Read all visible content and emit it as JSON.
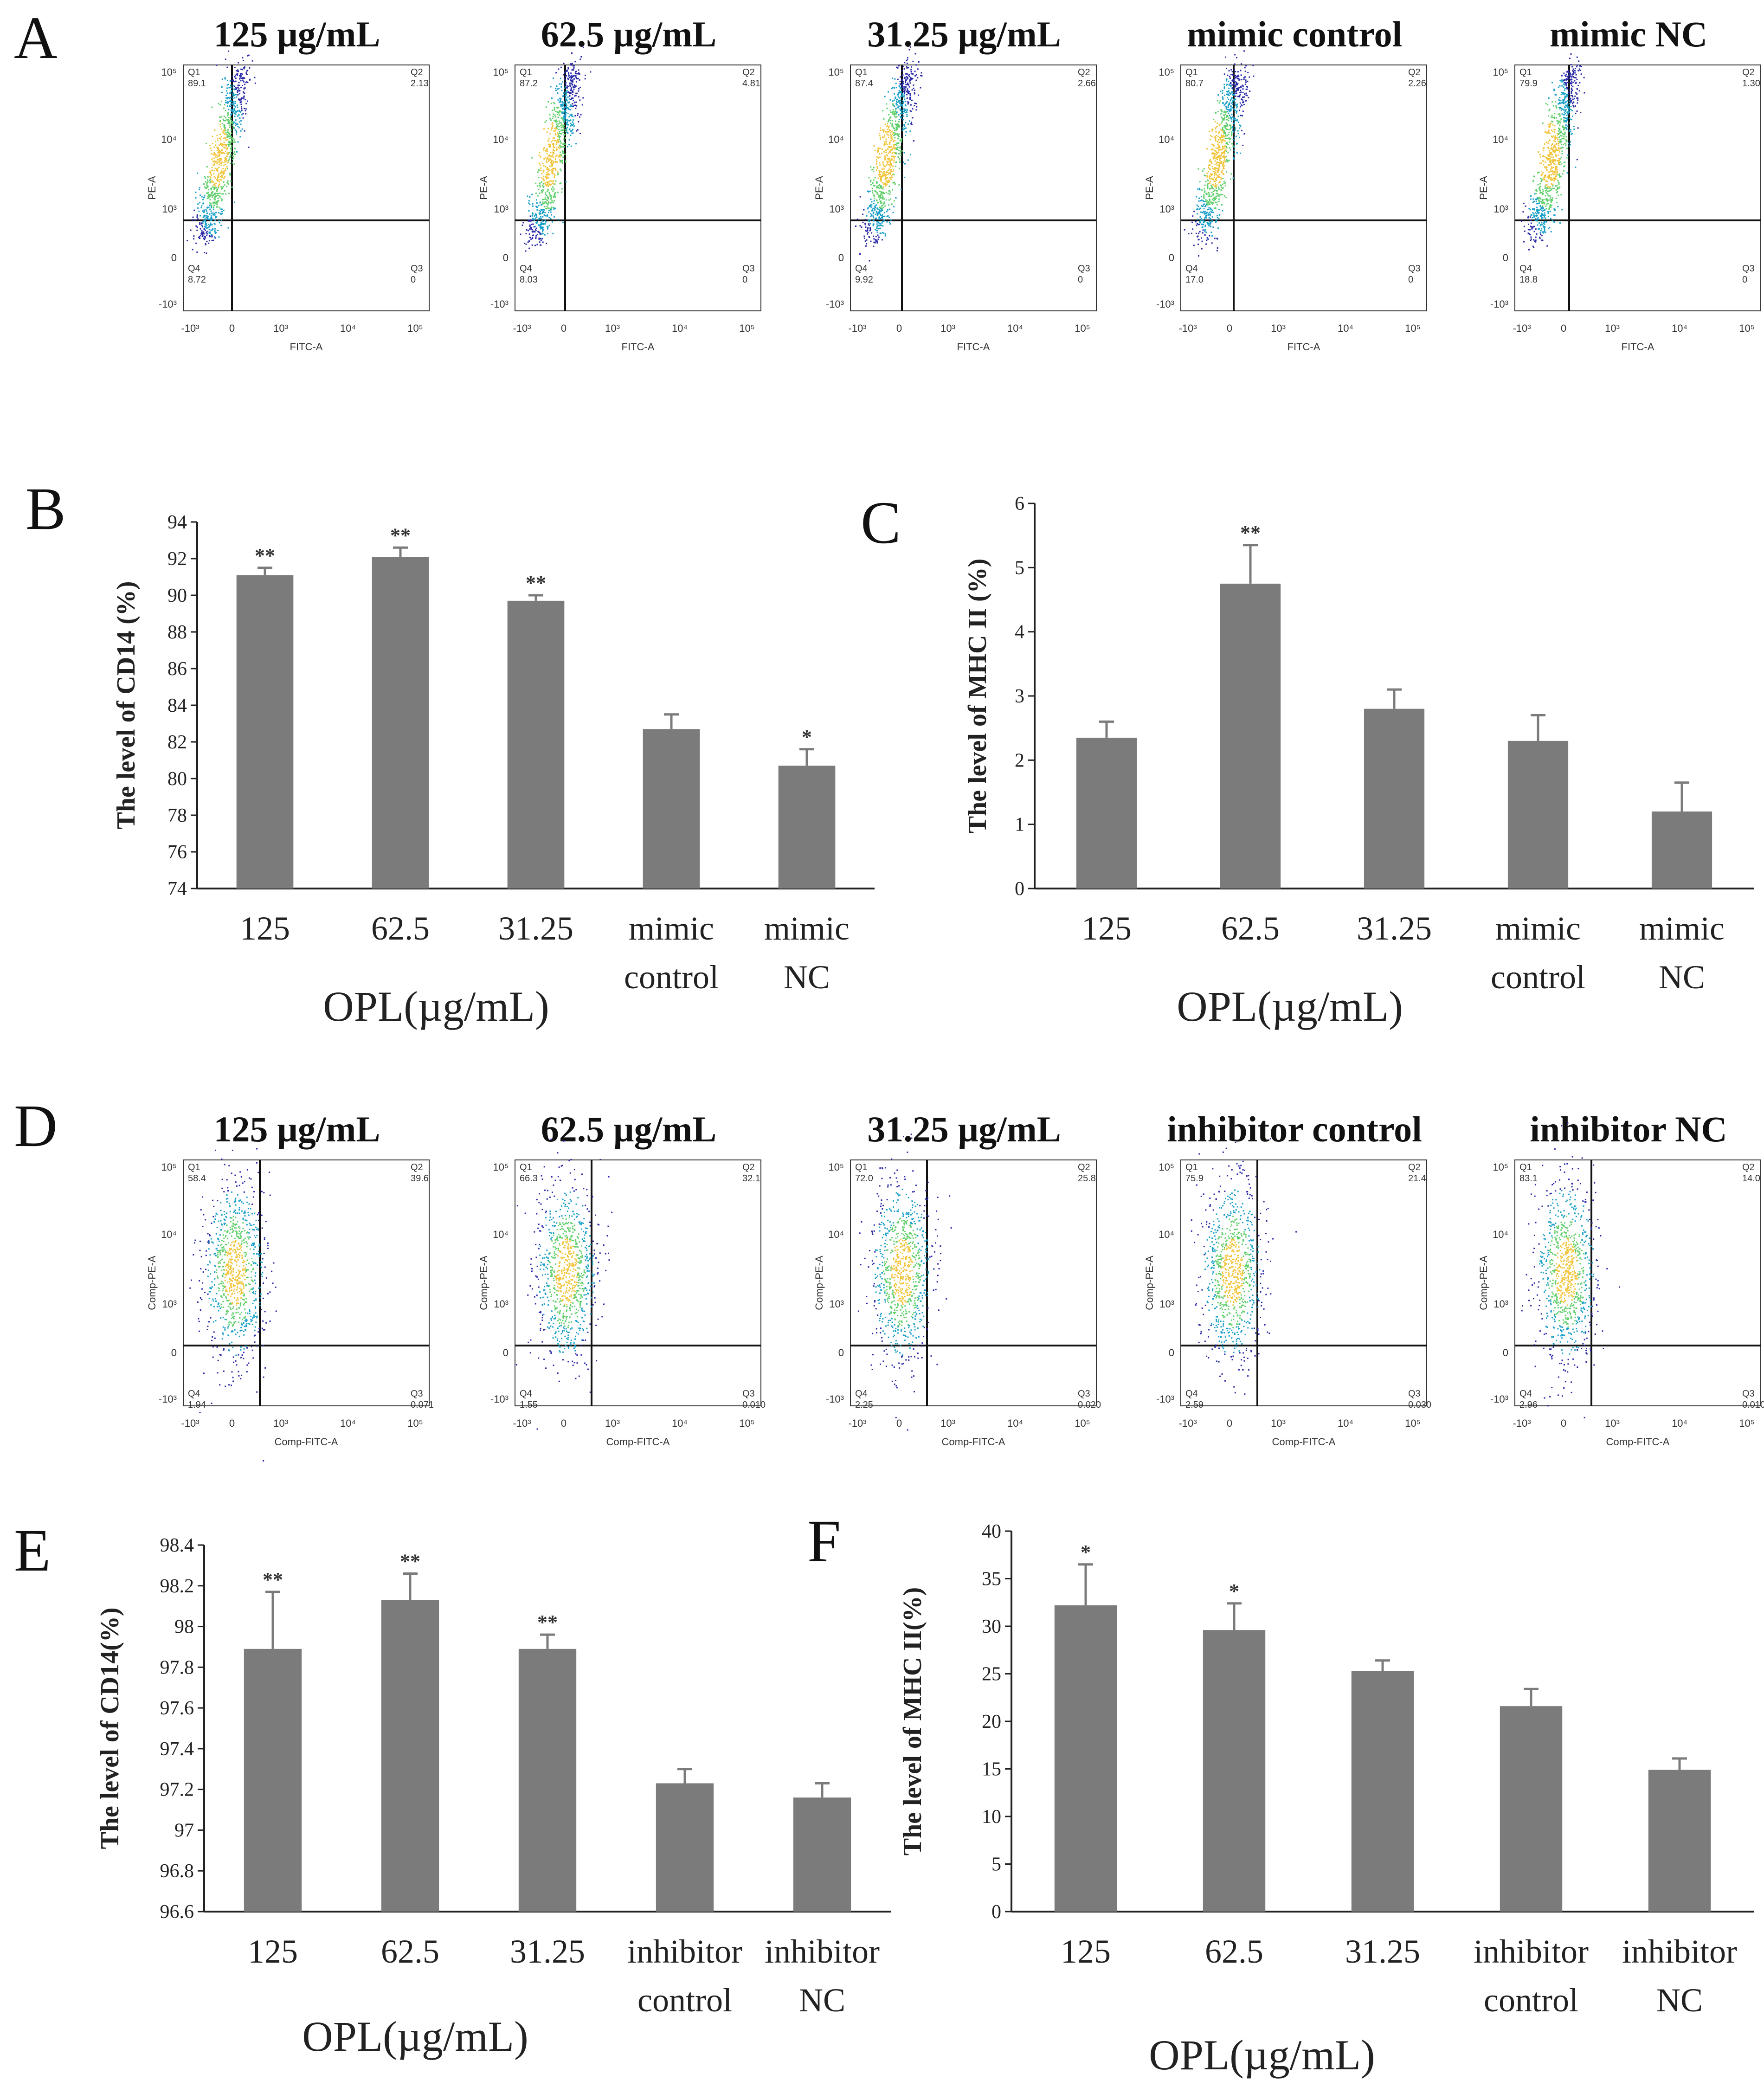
{
  "colors": {
    "bar": "#7b7b7b",
    "axis": "#222222",
    "flow_line": "#111111"
  },
  "panels": {
    "A": {
      "letter": "A",
      "plots": [
        {
          "title": "125 µg/mL",
          "q1": "89.1",
          "q2": "2.13",
          "q3": "0",
          "q4": "8.72"
        },
        {
          "title": "62.5 µg/mL",
          "q1": "87.2",
          "q2": "4.81",
          "q3": "0",
          "q4": "8.03"
        },
        {
          "title": "31.25 µg/mL",
          "q1": "87.4",
          "q2": "2.66",
          "q3": "0",
          "q4": "9.92"
        },
        {
          "title": "mimic control",
          "q1": "80.7",
          "q2": "2.26",
          "q3": "0",
          "q4": "17.0"
        },
        {
          "title": "mimic NC",
          "q1": "79.9",
          "q2": "1.30",
          "q3": "0",
          "q4": "18.8"
        }
      ],
      "y_axis_label": "PE-A",
      "x_axis_label": "FITC-A"
    },
    "D": {
      "letter": "D",
      "plots": [
        {
          "title": "125 µg/mL",
          "q1": "58.4",
          "q2": "39.6",
          "q3": "0.071",
          "q4": "1.94"
        },
        {
          "title": "62.5 µg/mL",
          "q1": "66.3",
          "q2": "32.1",
          "q3": "0.010",
          "q4": "1.55"
        },
        {
          "title": "31.25 µg/mL",
          "q1": "72.0",
          "q2": "25.8",
          "q3": "0.020",
          "q4": "2.25"
        },
        {
          "title": "inhibitor control",
          "q1": "75.9",
          "q2": "21.4",
          "q3": "0.030",
          "q4": "2.59"
        },
        {
          "title": "inhibitor NC",
          "q1": "83.1",
          "q2": "14.0",
          "q3": "0.010",
          "q4": "2.96"
        }
      ],
      "y_axis_label": "Comp-PE-A",
      "x_axis_label": "Comp-FITC-A"
    },
    "flow_common": {
      "q_labels": [
        "Q1",
        "Q2",
        "Q3",
        "Q4"
      ],
      "tick_labels_y": [
        "10⁵",
        "10⁴",
        "10³",
        "0",
        "-10³"
      ],
      "tick_labels_x": [
        "-10³",
        "0",
        "10³",
        "10⁴",
        "10⁵"
      ]
    }
  },
  "chart_data": [
    {
      "panel": "B",
      "type": "bar",
      "categories": [
        [
          "125"
        ],
        [
          "62.5"
        ],
        [
          "31.25"
        ],
        [
          "mimic",
          "control"
        ],
        [
          "mimic",
          "NC"
        ]
      ],
      "values": [
        91.1,
        92.1,
        89.7,
        82.7,
        80.7
      ],
      "errors": [
        0.4,
        0.5,
        0.3,
        0.8,
        0.9
      ],
      "significance": [
        "**",
        "**",
        "**",
        "",
        "*"
      ],
      "ylabel": "The level of CD14 (%)",
      "xlabel": "OPL(µg/mL)",
      "ylim": [
        74,
        94
      ],
      "yticks": [
        "74",
        "76",
        "78",
        "80",
        "82",
        "84",
        "86",
        "88",
        "90",
        "92",
        "94"
      ]
    },
    {
      "panel": "C",
      "type": "bar",
      "categories": [
        [
          "125"
        ],
        [
          "62.5"
        ],
        [
          "31.25"
        ],
        [
          "mimic",
          "control"
        ],
        [
          "mimic",
          "NC"
        ]
      ],
      "values": [
        2.35,
        4.75,
        2.8,
        2.3,
        1.2
      ],
      "errors": [
        0.25,
        0.6,
        0.3,
        0.4,
        0.45
      ],
      "significance": [
        "",
        "**",
        "",
        "",
        ""
      ],
      "ylabel": "The level of MHC II  (%)",
      "xlabel": "OPL(µg/mL)",
      "ylim": [
        0,
        6
      ],
      "yticks": [
        "0",
        "1",
        "2",
        "3",
        "4",
        "5",
        "6"
      ]
    },
    {
      "panel": "E",
      "type": "bar",
      "categories": [
        [
          "125"
        ],
        [
          "62.5"
        ],
        [
          "31.25"
        ],
        [
          "inhibitor",
          "control"
        ],
        [
          "inhibitor",
          "NC"
        ]
      ],
      "values": [
        97.89,
        98.13,
        97.89,
        97.23,
        97.16
      ],
      "errors": [
        0.28,
        0.13,
        0.07,
        0.07,
        0.07
      ],
      "significance": [
        "**",
        "**",
        "**",
        "",
        ""
      ],
      "ylabel": "The level of CD14(%)",
      "xlabel": "OPL(µg/mL)",
      "ylim": [
        96.6,
        98.4
      ],
      "yticks": [
        "96.6",
        "96.8",
        "97",
        "97.2",
        "97.4",
        "97.6",
        "97.8",
        "98",
        "98.2",
        "98.4"
      ]
    },
    {
      "panel": "F",
      "type": "bar",
      "categories": [
        [
          "125"
        ],
        [
          "62.5"
        ],
        [
          "31.25"
        ],
        [
          "inhibitor",
          "control"
        ],
        [
          "inhibitor",
          "NC"
        ]
      ],
      "values": [
        32.2,
        29.6,
        25.3,
        21.6,
        14.9
      ],
      "errors": [
        4.3,
        2.8,
        1.1,
        1.8,
        1.2
      ],
      "significance": [
        "*",
        "*",
        "",
        "",
        ""
      ],
      "ylabel": "The level of MHC II(%)",
      "xlabel": "OPL(µg/mL)",
      "ylim": [
        0,
        40
      ],
      "yticks": [
        "0",
        "5",
        "10",
        "15",
        "20",
        "25",
        "30",
        "35",
        "40"
      ]
    }
  ]
}
